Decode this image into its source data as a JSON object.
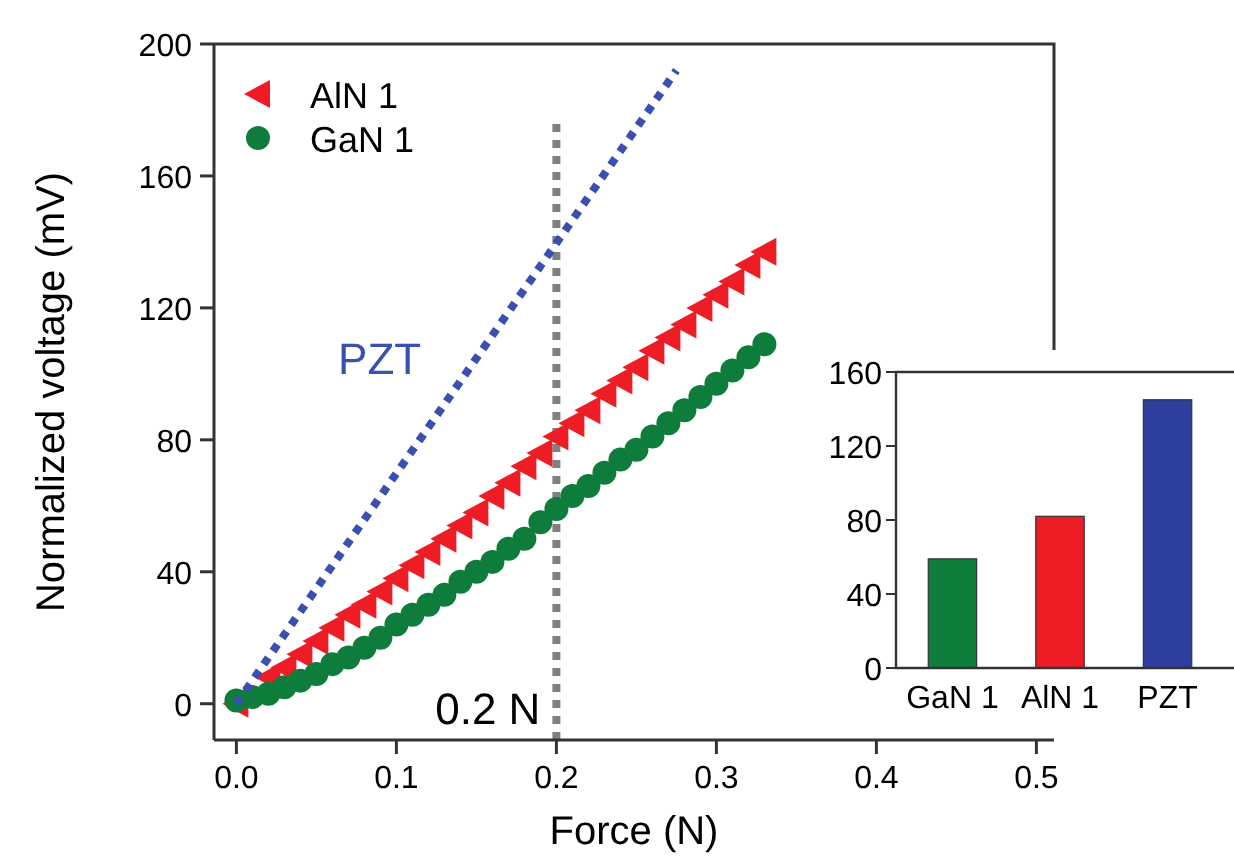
{
  "chart_data": [
    {
      "type": "scatter",
      "xlabel": "Force (N)",
      "ylabel": "Normalized voltage (mV)",
      "xlim": [
        -0.014,
        0.511
      ],
      "ylim": [
        -11,
        200
      ],
      "xticks": [
        {
          "value": 0,
          "label": "0.0"
        },
        {
          "value": 0.1,
          "label": "0.1"
        },
        {
          "value": 0.2,
          "label": "0.2"
        },
        {
          "value": 0.3,
          "label": "0.3"
        },
        {
          "value": 0.4,
          "label": "0.4"
        },
        {
          "value": 0.5,
          "label": "0.5"
        }
      ],
      "yticks": [
        0,
        40,
        80,
        120,
        160,
        200
      ],
      "x": [
        0,
        0.01,
        0.02,
        0.03,
        0.04,
        0.05,
        0.06,
        0.07,
        0.08,
        0.09,
        0.1,
        0.11,
        0.12,
        0.13,
        0.14,
        0.15,
        0.16,
        0.17,
        0.18,
        0.19,
        0.2,
        0.21,
        0.22,
        0.23,
        0.24,
        0.25,
        0.26,
        0.27,
        0.28,
        0.29,
        0.3,
        0.31,
        0.32,
        0.33
      ],
      "series": [
        {
          "name": "AlN 1",
          "color": "#ee1c25",
          "marker": "triangle",
          "values": [
            0,
            null,
            8,
            11,
            15,
            19,
            23,
            27,
            30,
            34,
            38,
            42,
            46,
            50,
            54,
            58,
            63,
            67,
            72,
            76,
            81,
            85,
            89,
            94,
            98,
            102,
            107,
            111,
            115,
            120,
            124,
            128,
            133,
            137
          ]
        },
        {
          "name": "GaN 1",
          "color": "#0e7c3a",
          "marker": "circle",
          "values": [
            1,
            2,
            3,
            5,
            7,
            9,
            12,
            14,
            17,
            20,
            24,
            27,
            30,
            33,
            37,
            40,
            43,
            47,
            50,
            55,
            59,
            63,
            66,
            70,
            74,
            77,
            81,
            85,
            89,
            93,
            97,
            101,
            105,
            109
          ]
        },
        {
          "name": "PZT",
          "type": "line",
          "color": "#3b4fb0",
          "line_style": "dotted",
          "marker": "none",
          "x": [
            0,
            0.275
          ],
          "values": [
            0,
            192
          ]
        }
      ],
      "ref_lines": [
        {
          "axis": "x",
          "value": 0.2,
          "label": "0.2 N",
          "color": "#808080",
          "line_style": "dotted"
        }
      ],
      "legend": "top left"
    },
    {
      "type": "bar",
      "categories": [
        "GaN 1",
        "AlN 1",
        "PZT"
      ],
      "values": [
        59,
        82,
        145
      ],
      "colors": [
        "#0e7c3a",
        "#ee1c25",
        "#2f3f9f"
      ],
      "ylim": [
        0,
        160
      ],
      "yticks": [
        0,
        40,
        80,
        120,
        160
      ]
    }
  ]
}
